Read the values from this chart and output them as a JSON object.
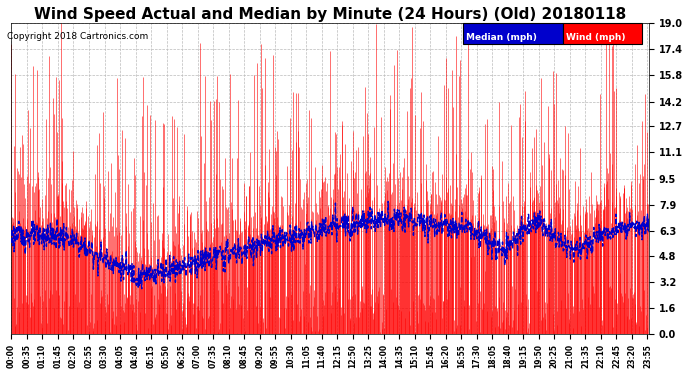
{
  "title": "Wind Speed Actual and Median by Minute (24 Hours) (Old) 20180118",
  "copyright": "Copyright 2018 Cartronics.com",
  "yticks": [
    0.0,
    1.6,
    3.2,
    4.8,
    6.3,
    7.9,
    9.5,
    11.1,
    12.7,
    14.2,
    15.8,
    17.4,
    19.0
  ],
  "ylim": [
    0.0,
    19.0
  ],
  "legend_median_color": "#0000cc",
  "legend_wind_color": "#ff0000",
  "legend_median_label": "Median (mph)",
  "legend_wind_label": "Wind (mph)",
  "background_color": "#ffffff",
  "plot_bg_color": "#ffffff",
  "grid_color": "#bbbbbb",
  "wind_color": "#ff0000",
  "median_color": "#0000cc",
  "title_fontsize": 11,
  "n_minutes": 1440,
  "seed": 123
}
